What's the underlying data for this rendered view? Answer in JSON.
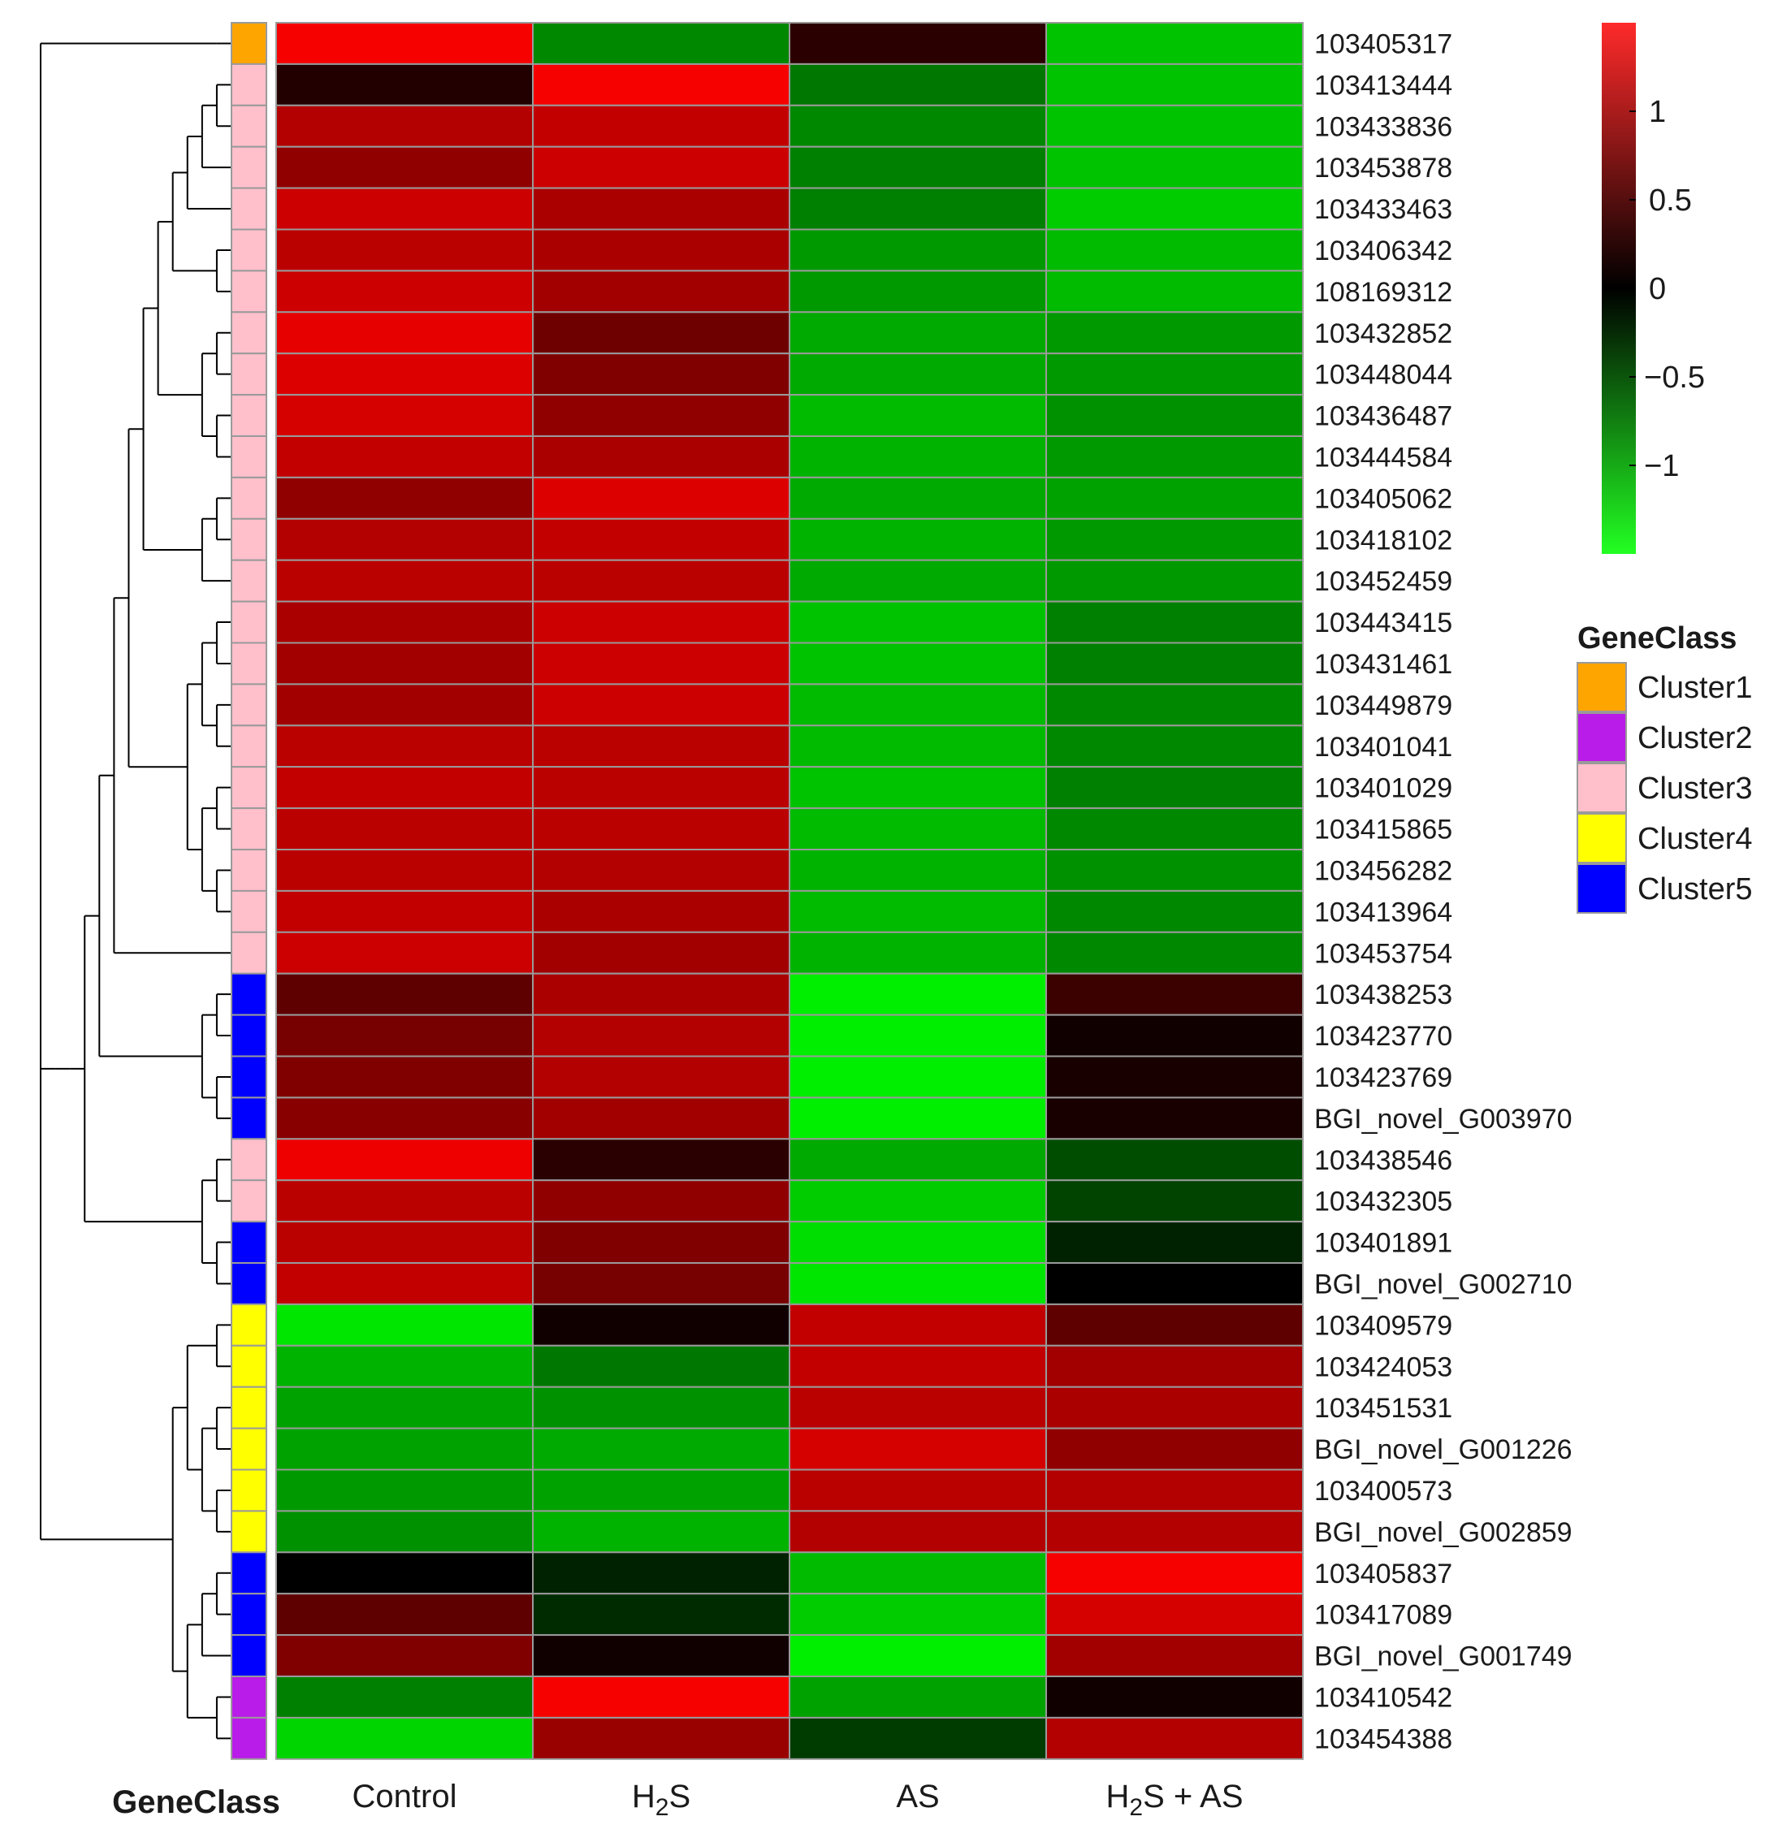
{
  "chart_data": {
    "type": "heatmap",
    "columns": [
      "Control",
      "H2S",
      "AS",
      "H2S + AS"
    ],
    "column_labels": [
      {
        "main": "Control",
        "sub": "",
        "tail": ""
      },
      {
        "main": "H",
        "sub": "2",
        "tail": "S"
      },
      {
        "main": "AS",
        "sub": "",
        "tail": ""
      },
      {
        "main": "H",
        "sub": "2",
        "tail": "S + AS"
      }
    ],
    "rows": [
      "103405317",
      "103413444",
      "103433836",
      "103453878",
      "103433463",
      "103406342",
      "108169312",
      "103432852",
      "103448044",
      "103436487",
      "103444584",
      "103405062",
      "103418102",
      "103452459",
      "103443415",
      "103431461",
      "103449879",
      "103401041",
      "103401029",
      "103415865",
      "103456282",
      "103413964",
      "103453754",
      "103438253",
      "103423770",
      "103423769",
      "BGI_novel_G003970",
      "103438546",
      "103432305",
      "103401891",
      "BGI_novel_G002710",
      "103409579",
      "103424053",
      "103451531",
      "BGI_novel_G001226",
      "103400573",
      "BGI_novel_G002859",
      "103405837",
      "103417089",
      "BGI_novel_G001749",
      "103410542",
      "103454388"
    ],
    "gene_class": [
      "Cluster1",
      "Cluster3",
      "Cluster3",
      "Cluster3",
      "Cluster3",
      "Cluster3",
      "Cluster3",
      "Cluster3",
      "Cluster3",
      "Cluster3",
      "Cluster3",
      "Cluster3",
      "Cluster3",
      "Cluster3",
      "Cluster3",
      "Cluster3",
      "Cluster3",
      "Cluster3",
      "Cluster3",
      "Cluster3",
      "Cluster3",
      "Cluster3",
      "Cluster3",
      "Cluster5",
      "Cluster5",
      "Cluster5",
      "Cluster5",
      "Cluster3",
      "Cluster3",
      "Cluster5",
      "Cluster5",
      "Cluster4",
      "Cluster4",
      "Cluster4",
      "Cluster4",
      "Cluster4",
      "Cluster4",
      "Cluster5",
      "Cluster5",
      "Cluster5",
      "Cluster2",
      "Cluster2"
    ],
    "values": [
      [
        1.45,
        -0.8,
        0.25,
        -1.15
      ],
      [
        0.2,
        1.45,
        -0.7,
        -1.15
      ],
      [
        1.05,
        1.15,
        -0.8,
        -1.15
      ],
      [
        0.85,
        1.2,
        -0.75,
        -1.15
      ],
      [
        1.2,
        1.0,
        -0.75,
        -1.2
      ],
      [
        1.1,
        1.0,
        -0.9,
        -1.1
      ],
      [
        1.2,
        0.95,
        -0.9,
        -1.1
      ],
      [
        1.35,
        0.65,
        -1.0,
        -0.9
      ],
      [
        1.3,
        0.75,
        -1.0,
        -0.9
      ],
      [
        1.25,
        0.85,
        -1.1,
        -0.85
      ],
      [
        1.15,
        1.0,
        -1.05,
        -0.9
      ],
      [
        0.85,
        1.3,
        -1.0,
        -0.95
      ],
      [
        1.05,
        1.15,
        -1.05,
        -0.9
      ],
      [
        1.1,
        1.1,
        -1.0,
        -0.9
      ],
      [
        1.0,
        1.2,
        -1.15,
        -0.75
      ],
      [
        0.95,
        1.2,
        -1.15,
        -0.75
      ],
      [
        0.95,
        1.2,
        -1.1,
        -0.8
      ],
      [
        1.1,
        1.1,
        -1.1,
        -0.8
      ],
      [
        1.15,
        1.1,
        -1.15,
        -0.75
      ],
      [
        1.1,
        1.1,
        -1.1,
        -0.8
      ],
      [
        1.1,
        1.05,
        -1.05,
        -0.85
      ],
      [
        1.15,
        1.0,
        -1.1,
        -0.8
      ],
      [
        1.2,
        0.95,
        -1.05,
        -0.8
      ],
      [
        0.55,
        1.0,
        -1.4,
        0.35
      ],
      [
        0.7,
        1.05,
        -1.4,
        0.1
      ],
      [
        0.75,
        1.05,
        -1.4,
        0.15
      ],
      [
        0.8,
        0.95,
        -1.4,
        0.15
      ],
      [
        1.4,
        0.25,
        -1.0,
        -0.45
      ],
      [
        1.1,
        0.85,
        -1.2,
        -0.4
      ],
      [
        1.1,
        0.75,
        -1.3,
        -0.2
      ],
      [
        1.15,
        0.7,
        -1.35,
        0.0
      ],
      [
        -1.35,
        0.1,
        1.15,
        0.55
      ],
      [
        -1.05,
        -0.7,
        1.15,
        0.95
      ],
      [
        -0.95,
        -0.85,
        1.1,
        1.0
      ],
      [
        -0.95,
        -1.0,
        1.25,
        0.85
      ],
      [
        -0.9,
        -0.95,
        1.1,
        1.05
      ],
      [
        -0.85,
        -1.05,
        1.05,
        1.05
      ],
      [
        0.0,
        -0.2,
        -1.1,
        1.45
      ],
      [
        0.55,
        -0.25,
        -1.2,
        1.25
      ],
      [
        0.75,
        0.1,
        -1.4,
        0.95
      ],
      [
        -0.75,
        1.45,
        -0.95,
        0.1
      ],
      [
        -1.25,
        0.9,
        -0.35,
        1.05
      ]
    ],
    "colorbar": {
      "min": -1.5,
      "max": 1.5,
      "ticks": [
        1,
        0.5,
        0,
        -0.5,
        -1
      ],
      "tick_labels": [
        "1",
        "0.5",
        "0",
        "−0.5",
        "−1"
      ]
    },
    "legend": {
      "title": "GeneClass",
      "entries": [
        {
          "name": "Cluster1",
          "color": "#FFA500"
        },
        {
          "name": "Cluster2",
          "color": "#B91BE8"
        },
        {
          "name": "Cluster3",
          "color": "#FFC0CB"
        },
        {
          "name": "Cluster4",
          "color": "#FFFF00"
        },
        {
          "name": "Cluster5",
          "color": "#0000FF"
        }
      ]
    },
    "annotation_label": "GeneClass",
    "dendrogram_rows": [
      [
        0
      ],
      [
        [
          [
            [
              [
                [
                  [
                    [
                      [
                        [
                          [
                            [
                              1,
                              2
                            ],
                            3
                          ],
                          4
                        ],
                        [
                          5,
                          6
                        ]
                      ],
                      [
                        [
                          7,
                          8
                        ],
                        [
                          9,
                          10
                        ]
                      ]
                    ],
                    [
                      [
                        11,
                        12
                      ],
                      13
                    ]
                  ],
                  [
                    [
                      [
                        14,
                        15
                      ],
                      [
                        16,
                        17
                      ]
                    ],
                    [
                      [
                        18,
                        19
                      ],
                      [
                        20,
                        21
                      ]
                    ]
                  ]
                ],
                22
              ],
              [
                [
                  23,
                  24
                ],
                [
                  25,
                  26
                ]
              ]
            ],
            [
              [
                27,
                28
              ],
              [
                29,
                30
              ]
            ]
          ]
        ]
      ],
      [
        [
          [
            31,
            32
          ],
          [
            [
              33,
              34
            ],
            [
              35,
              36
            ]
          ]
        ],
        [
          [
            [
              37,
              38
            ],
            39
          ],
          [
            40,
            41
          ]
        ]
      ]
    ]
  }
}
